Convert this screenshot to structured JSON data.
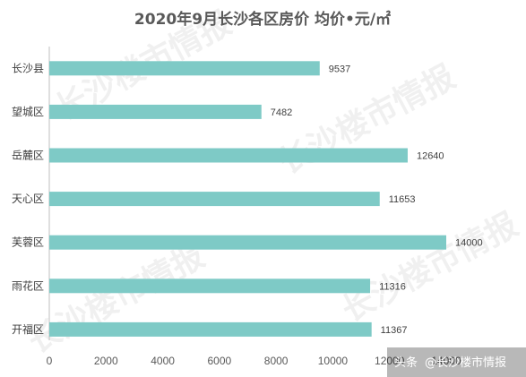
{
  "chart_data": {
    "type": "bar",
    "orientation": "horizontal",
    "title": "2020年9月长沙各区房价 均价•元/㎡",
    "categories": [
      "长沙县",
      "望城区",
      "岳麓区",
      "天心区",
      "芙蓉区",
      "雨花区",
      "开福区"
    ],
    "values": [
      9537,
      7482,
      12640,
      11653,
      14000,
      11316,
      11367
    ],
    "data_labels": [
      "9537",
      "7482",
      "12640",
      "11653",
      "14000",
      "11316",
      "11367"
    ],
    "xlim": [
      0,
      14000
    ],
    "xticks": [
      "0",
      "2000",
      "4000",
      "6000",
      "8000",
      "10000",
      "12000",
      "14000"
    ],
    "grid": false,
    "bar_color": "#7ECAC6"
  },
  "watermark": "长沙楼市情报",
  "credit": {
    "prefix": "头条",
    "handle": "@长沙楼市情报"
  }
}
